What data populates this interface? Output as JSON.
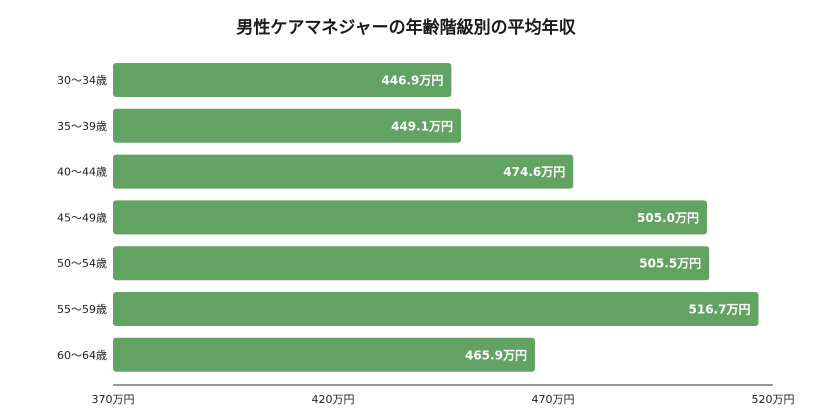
{
  "chart_data": {
    "type": "bar",
    "orientation": "horizontal",
    "title": "男性ケアマネジャーの年齢階級別の平均年収",
    "categories": [
      "30〜34歳",
      "35〜39歳",
      "40〜44歳",
      "45〜49歳",
      "50〜54歳",
      "55〜59歳",
      "60〜64歳"
    ],
    "values": [
      446.9,
      449.1,
      474.6,
      505.0,
      505.5,
      516.7,
      465.9
    ],
    "value_labels": [
      "446.9万円",
      "449.1万円",
      "474.6万円",
      "505.0万円",
      "505.5万円",
      "516.7万円",
      "465.9万円"
    ],
    "xlim": [
      370,
      520
    ],
    "xticks": [
      370,
      420,
      470,
      520
    ],
    "xtick_labels": [
      "370万円",
      "420万円",
      "470万円",
      "520万円"
    ],
    "xlabel": "",
    "ylabel": "",
    "grid": false,
    "legend": "none",
    "bar_color": "#62a263",
    "label_color": "#ffffff",
    "axis_color": "#333333"
  }
}
